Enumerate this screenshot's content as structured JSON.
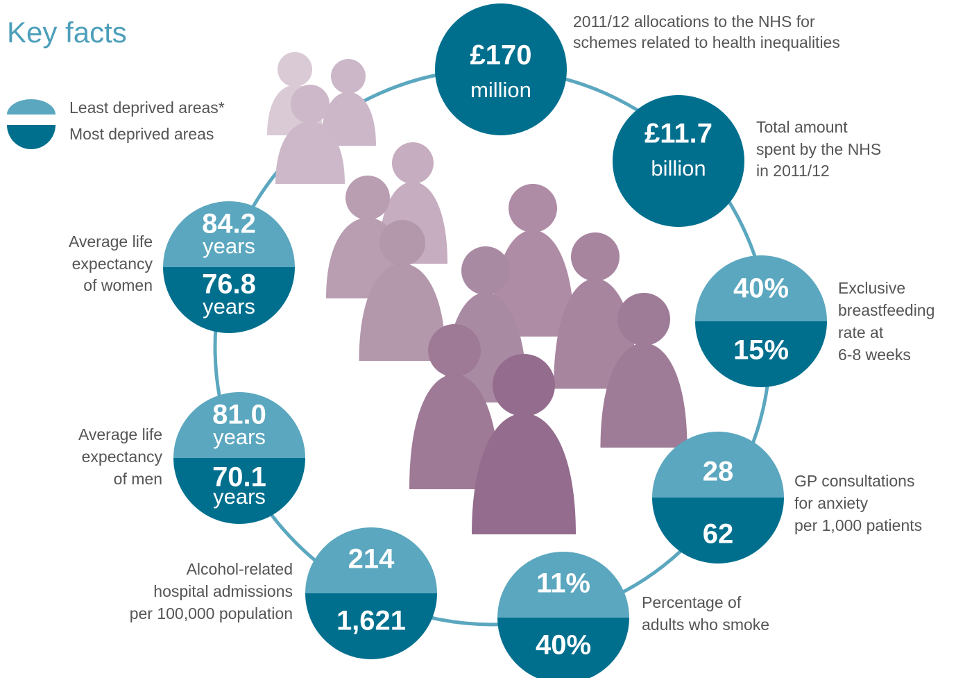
{
  "title": "Key facts",
  "legend": [
    {
      "label": "Least deprived areas*"
    },
    {
      "label": "Most deprived areas"
    }
  ],
  "facts": [
    {
      "value": "£170",
      "unit": "million",
      "label": [
        "2011/12 allocations to the NHS for",
        "schemes related to health inequalities"
      ]
    },
    {
      "value": "£11.7",
      "unit": "billion",
      "label": [
        "Total amount",
        "spent by the NHS",
        "in 2011/12"
      ]
    },
    {
      "least": "40%",
      "most": "15%",
      "label": [
        "Exclusive",
        "breastfeeding",
        "rate at",
        "6-8 weeks"
      ]
    },
    {
      "least": "28",
      "most": "62",
      "label": [
        "GP consultations",
        "for anxiety",
        "per 1,000 patients"
      ]
    },
    {
      "least": "11%",
      "most": "40%",
      "label": [
        "Percentage of",
        "adults who smoke"
      ]
    },
    {
      "least": "214",
      "most": "1,621",
      "label": [
        "Alcohol-related",
        "hospital admissions",
        "per 100,000 population"
      ]
    },
    {
      "least": "81.0",
      "least_unit": "years",
      "most": "70.1",
      "most_unit": "years",
      "label": [
        "Average life",
        "expectancy",
        "of men"
      ]
    },
    {
      "least": "84.2",
      "least_unit": "years",
      "most": "76.8",
      "most_unit": "years",
      "label": [
        "Average life",
        "expectancy",
        "of women"
      ]
    }
  ]
}
